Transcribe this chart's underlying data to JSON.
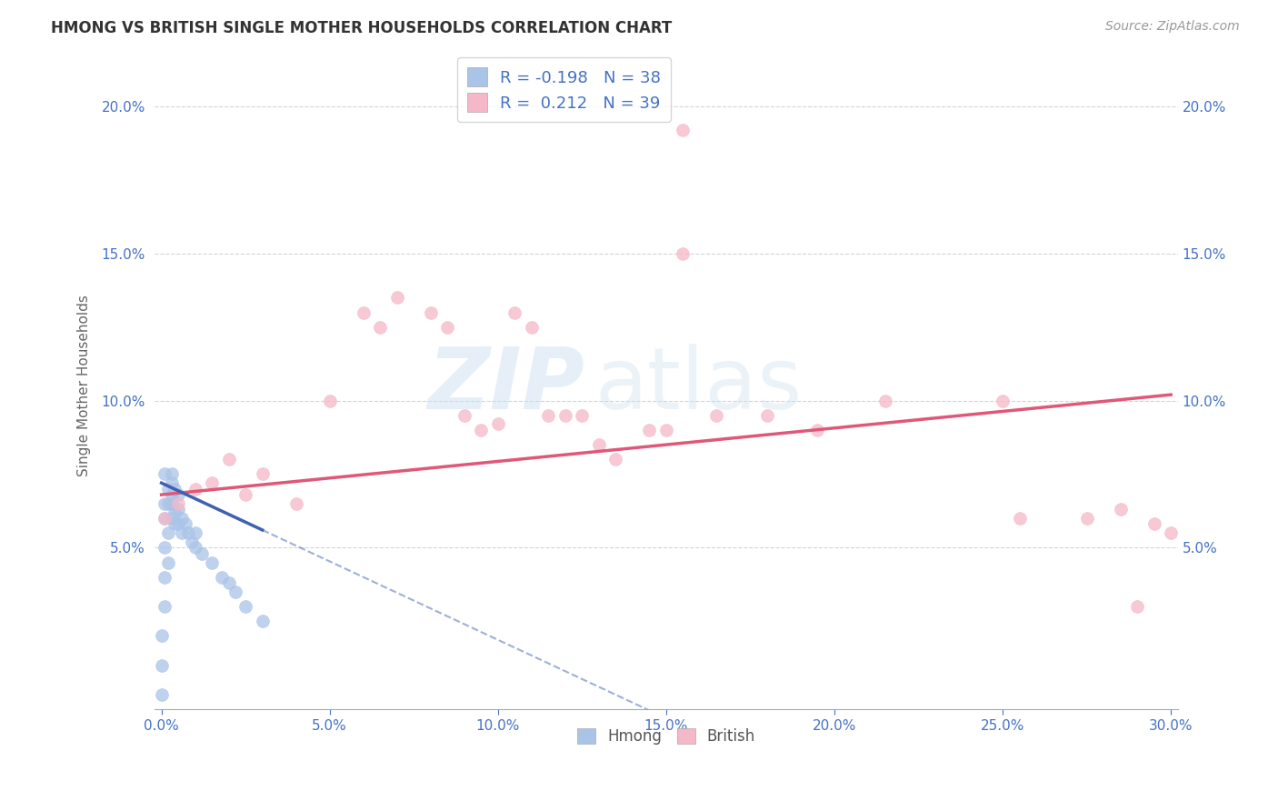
{
  "title": "HMONG VS BRITISH SINGLE MOTHER HOUSEHOLDS CORRELATION CHART",
  "source": "Source: ZipAtlas.com",
  "ylabel": "Single Mother Households",
  "xlim": [
    -0.002,
    0.302
  ],
  "ylim": [
    -0.005,
    0.215
  ],
  "xticks": [
    0.0,
    0.05,
    0.1,
    0.15,
    0.2,
    0.25,
    0.3
  ],
  "yticks": [
    0.05,
    0.1,
    0.15,
    0.2
  ],
  "background_color": "#ffffff",
  "grid_color": "#d0d0d0",
  "hmong_color": "#aac4e8",
  "british_color": "#f5b8c8",
  "hmong_line_color": "#4060b0",
  "british_line_color": "#e05878",
  "hmong_R": -0.198,
  "hmong_N": 38,
  "british_R": 0.212,
  "british_N": 39,
  "hmong_scatter_x": [
    0.0,
    0.0,
    0.0,
    0.001,
    0.001,
    0.001,
    0.001,
    0.001,
    0.001,
    0.002,
    0.002,
    0.002,
    0.002,
    0.003,
    0.003,
    0.003,
    0.003,
    0.003,
    0.004,
    0.004,
    0.004,
    0.005,
    0.005,
    0.005,
    0.006,
    0.006,
    0.007,
    0.008,
    0.009,
    0.01,
    0.01,
    0.012,
    0.015,
    0.018,
    0.02,
    0.022,
    0.025,
    0.03
  ],
  "hmong_scatter_y": [
    0.0,
    0.01,
    0.02,
    0.03,
    0.04,
    0.05,
    0.06,
    0.065,
    0.075,
    0.045,
    0.055,
    0.065,
    0.07,
    0.06,
    0.065,
    0.068,
    0.072,
    0.075,
    0.058,
    0.062,
    0.07,
    0.058,
    0.063,
    0.068,
    0.055,
    0.06,
    0.058,
    0.055,
    0.052,
    0.05,
    0.055,
    0.048,
    0.045,
    0.04,
    0.038,
    0.035,
    0.03,
    0.025
  ],
  "british_scatter_x": [
    0.001,
    0.005,
    0.01,
    0.015,
    0.02,
    0.025,
    0.03,
    0.04,
    0.05,
    0.06,
    0.065,
    0.07,
    0.08,
    0.085,
    0.09,
    0.095,
    0.1,
    0.105,
    0.11,
    0.115,
    0.12,
    0.125,
    0.13,
    0.135,
    0.145,
    0.15,
    0.155,
    0.165,
    0.18,
    0.195,
    0.215,
    0.25,
    0.255,
    0.275,
    0.285,
    0.29,
    0.295,
    0.3,
    0.155
  ],
  "british_scatter_y": [
    0.06,
    0.065,
    0.07,
    0.072,
    0.08,
    0.068,
    0.075,
    0.065,
    0.1,
    0.13,
    0.125,
    0.135,
    0.13,
    0.125,
    0.095,
    0.09,
    0.092,
    0.13,
    0.125,
    0.095,
    0.095,
    0.095,
    0.085,
    0.08,
    0.09,
    0.09,
    0.192,
    0.095,
    0.095,
    0.09,
    0.1,
    0.1,
    0.06,
    0.06,
    0.063,
    0.03,
    0.058,
    0.055,
    0.15
  ],
  "watermark_zip": "ZIP",
  "watermark_atlas": "atlas",
  "marker_size": 100
}
